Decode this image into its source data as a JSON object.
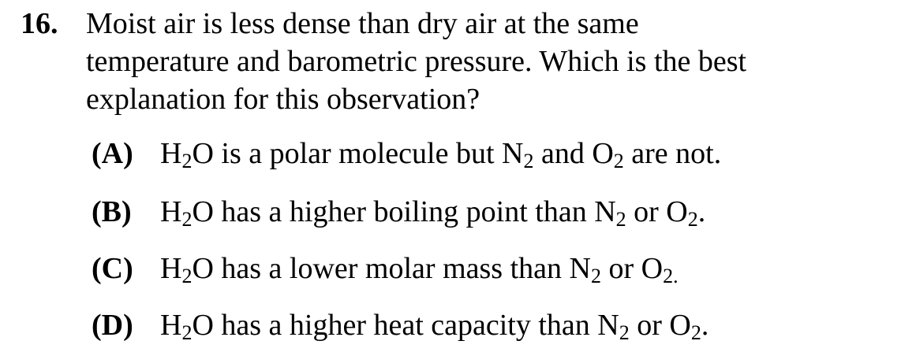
{
  "question": {
    "number": "16.",
    "stem_lines": [
      "Moist air is less dense than dry air at the same",
      "temperature and barometric pressure. Which is the best",
      "explanation for this observation?"
    ]
  },
  "choices": [
    {
      "letter": "(A)",
      "parts": [
        "H",
        "2",
        "O is a polar molecule but N",
        "2",
        " and O",
        "2",
        " are not."
      ]
    },
    {
      "letter": "(B)",
      "parts": [
        "H",
        "2",
        "O has a higher boiling point than N",
        "2",
        " or O",
        "2",
        "."
      ]
    },
    {
      "letter": "(C)",
      "parts": [
        "H",
        "2",
        "O has a lower molar mass than N",
        "2",
        " or O",
        "2."
      ]
    },
    {
      "letter": "(D)",
      "parts": [
        "H",
        "2",
        "O has a higher heat capacity than N",
        "2",
        " or O",
        "2",
        "."
      ]
    }
  ]
}
